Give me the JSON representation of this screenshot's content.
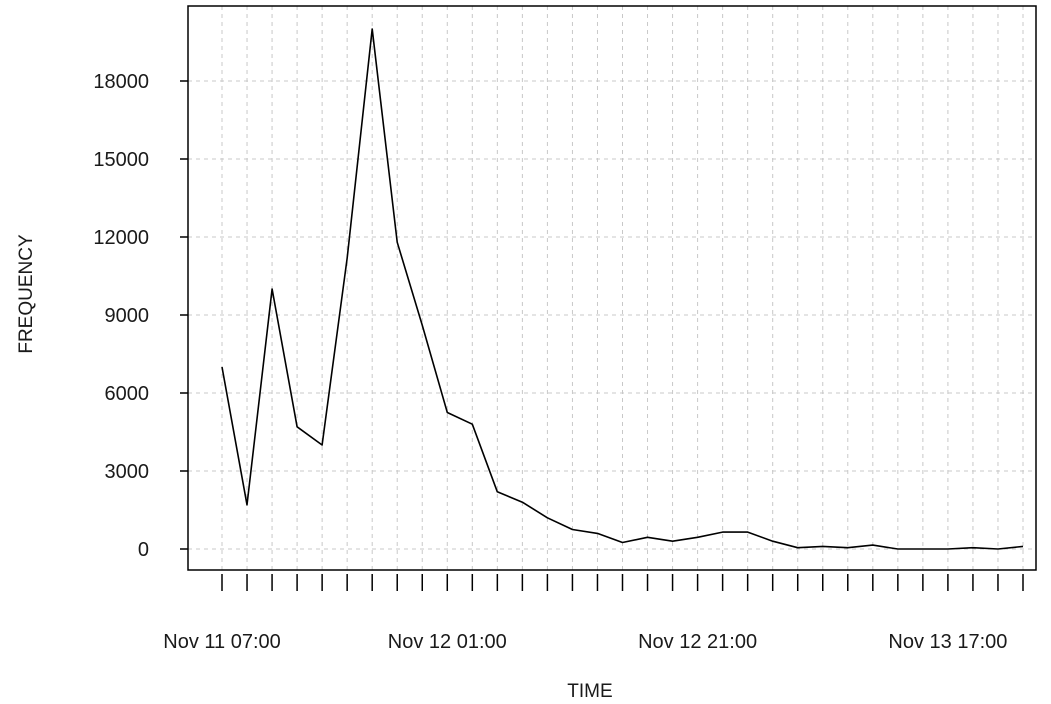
{
  "chart_data": {
    "type": "line",
    "xlabel": "TIME",
    "ylabel": "FREQUENCY",
    "ylim": [
      0,
      20000
    ],
    "yticks": [
      0,
      3000,
      6000,
      9000,
      12000,
      15000,
      18000
    ],
    "x_tick_labels": [
      {
        "index": 0,
        "label": "Nov 11 07:00"
      },
      {
        "index": 9,
        "label": "Nov 12 01:00"
      },
      {
        "index": 19,
        "label": "Nov 12 21:00"
      },
      {
        "index": 29,
        "label": "Nov 13 17:00"
      }
    ],
    "x_interval_hours": 2,
    "grid": true,
    "colors": {
      "line": "#000000",
      "grid": "#c8c8c8"
    },
    "series": [
      {
        "values": [
          7000,
          1700,
          10000,
          4700,
          4000,
          11200,
          20000,
          11800,
          8600,
          5250,
          4800,
          2200,
          1800,
          1200,
          750,
          600,
          250,
          450,
          300,
          450,
          650,
          650,
          300,
          50,
          100,
          50,
          150,
          0,
          0,
          0,
          50,
          0,
          100
        ]
      }
    ]
  }
}
